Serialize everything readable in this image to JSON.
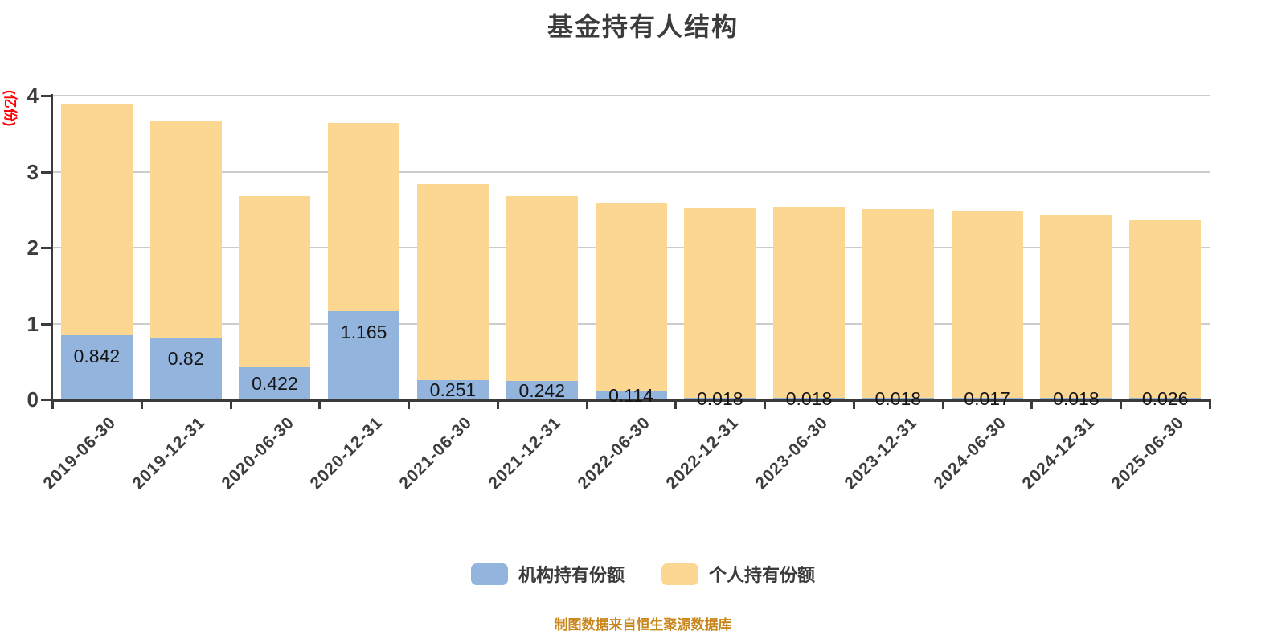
{
  "title": "基金持有人结构",
  "footer": "制图数据来自恒生聚源数据库",
  "y_axis": {
    "unit_label": "(亿份)",
    "unit_color": "#ff0000",
    "ticks": [
      0,
      1,
      2,
      3,
      4
    ]
  },
  "legend": [
    {
      "label": "机构持有份额",
      "color": "#93b4dc"
    },
    {
      "label": "个人持有份额",
      "color": "#fcd792"
    }
  ],
  "colors": {
    "institutional": "#93b4dc",
    "personal": "#fcd792",
    "grid": "#cccccc",
    "axis": "#3b3b3b",
    "title_text": "#3c3c3c",
    "footer_text": "#c8861b"
  },
  "chart_data": {
    "type": "bar",
    "stacked": true,
    "title": "基金持有人结构",
    "ylabel": "(亿份)",
    "ylim": [
      0,
      4
    ],
    "grid": true,
    "legend_position": "bottom",
    "categories": [
      "2019-06-30",
      "2019-12-31",
      "2020-06-30",
      "2020-12-31",
      "2021-06-30",
      "2021-12-31",
      "2022-06-30",
      "2022-12-31",
      "2023-06-30",
      "2023-12-31",
      "2024-06-30",
      "2024-12-31",
      "2025-06-30"
    ],
    "series": [
      {
        "name": "机构持有份额",
        "color": "#93b4dc",
        "values": [
          0.842,
          0.82,
          0.422,
          1.165,
          0.251,
          0.242,
          0.114,
          0.018,
          0.018,
          0.018,
          0.017,
          0.018,
          0.026
        ],
        "data_labels": [
          "0.842",
          "0.82",
          "0.422",
          "1.165",
          "0.251",
          "0.242",
          "0.114",
          "0.018",
          "0.018",
          "0.018",
          "0.017",
          "0.018",
          "0.026"
        ]
      },
      {
        "name": "个人持有份额",
        "color": "#fcd792",
        "values": [
          3.05,
          2.84,
          2.26,
          2.48,
          2.58,
          2.43,
          2.47,
          2.5,
          2.52,
          2.49,
          2.46,
          2.42,
          2.33
        ],
        "data_labels": []
      }
    ]
  }
}
